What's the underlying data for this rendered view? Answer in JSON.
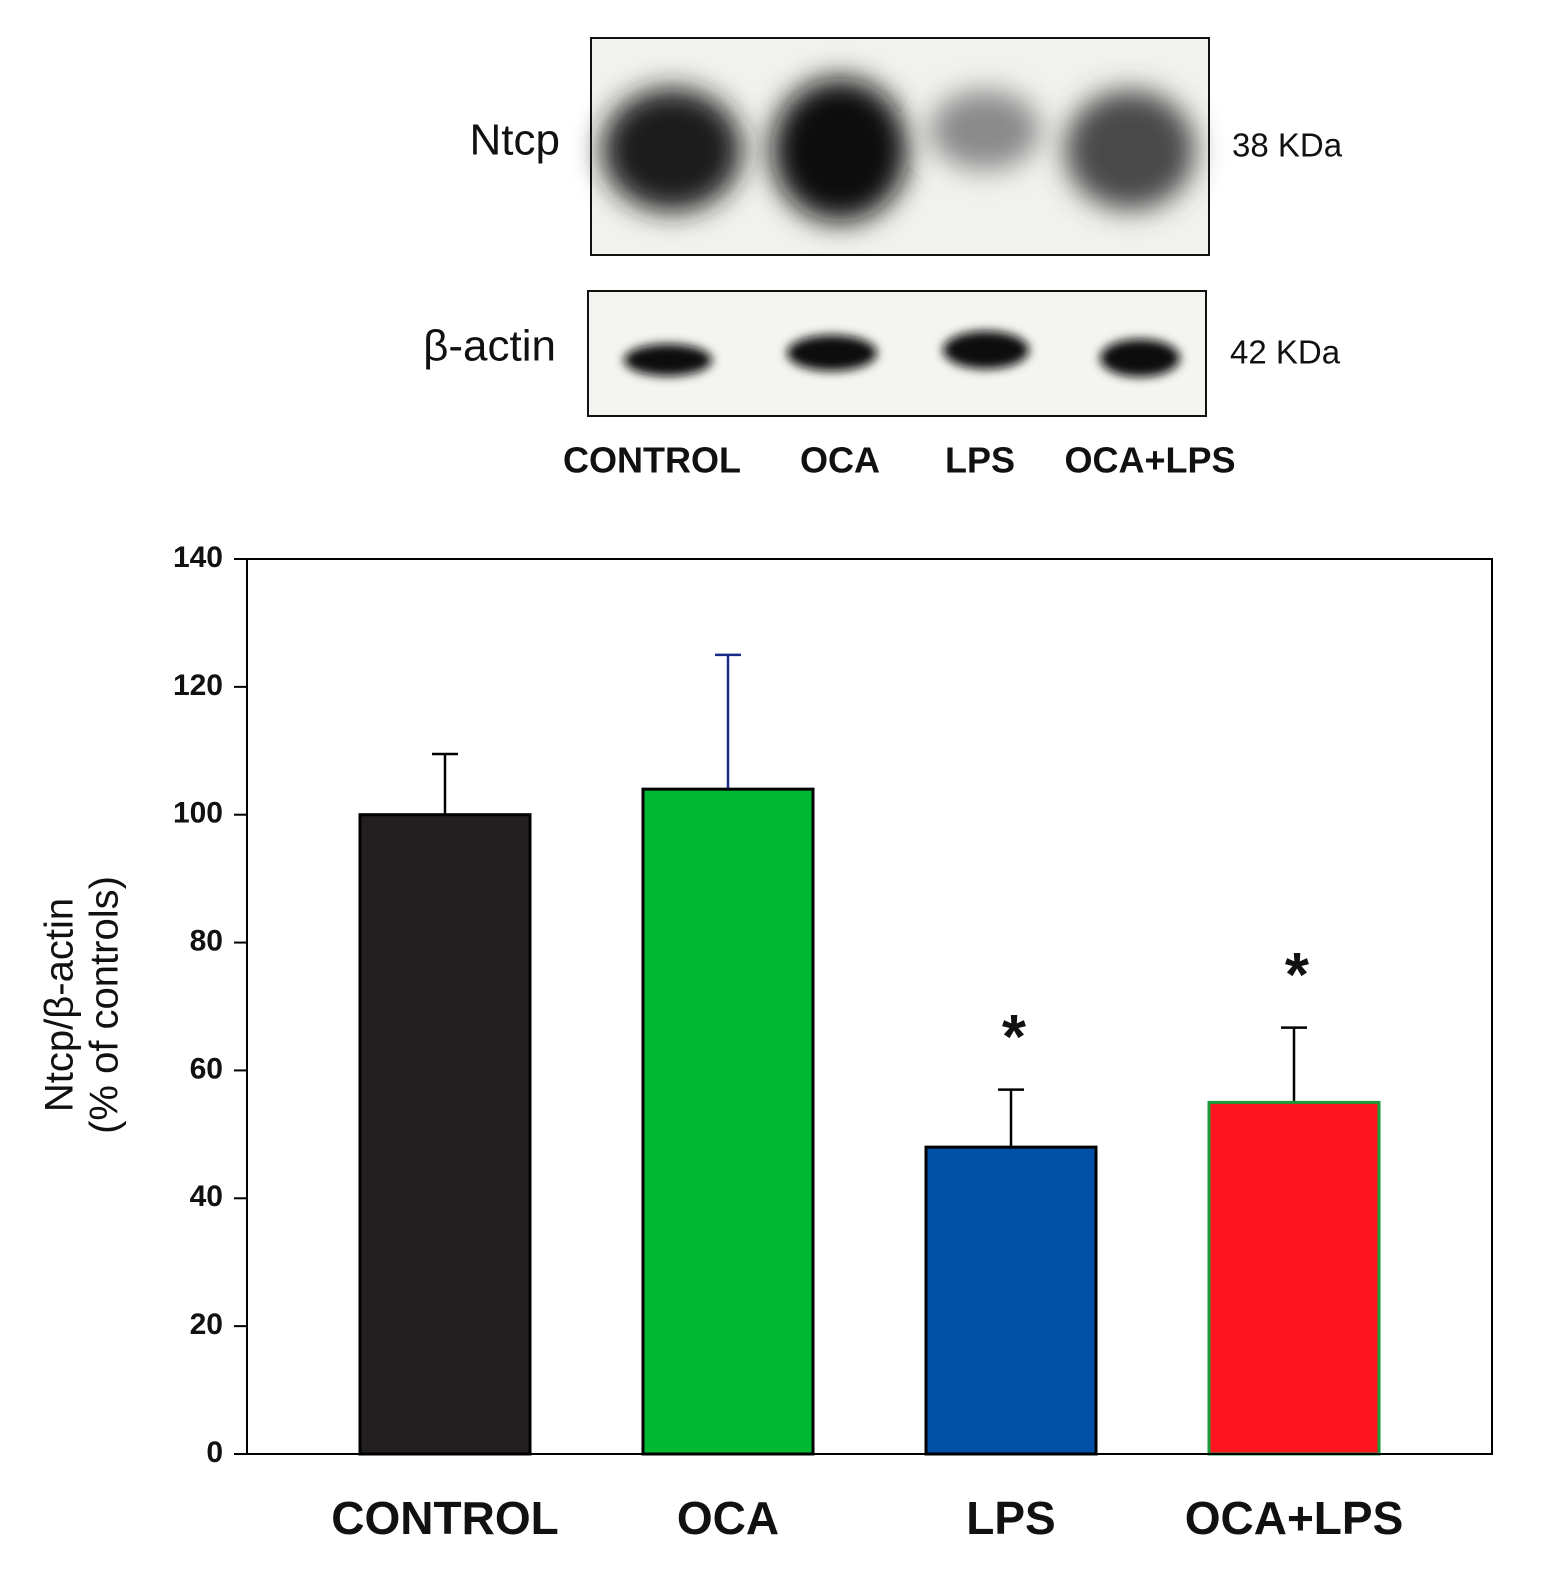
{
  "blot": {
    "rows": [
      {
        "label": "Ntcp",
        "size": "38 KDa"
      },
      {
        "label": "β-actin",
        "size": "42 KDa"
      }
    ],
    "lanes": [
      "CONTROL",
      "OCA",
      "LPS",
      "OCA+LPS"
    ]
  },
  "chart_data": {
    "type": "bar",
    "categories": [
      "CONTROL",
      "OCA",
      "LPS",
      "OCA+LPS"
    ],
    "values": [
      100,
      104,
      48,
      55
    ],
    "errors": [
      9.5,
      21,
      9,
      11.7
    ],
    "colors": [
      "#231f20",
      "#00b832",
      "#0050a8",
      "#ff1420"
    ],
    "edge_colors": [
      "#000000",
      "#000000",
      "#000000",
      "#1a9a3a"
    ],
    "error_colors": [
      "#000000",
      "#1a2a8c",
      "#000000",
      "#000000"
    ],
    "significance": [
      null,
      null,
      "*",
      "*"
    ],
    "ylabel": [
      "Ntcp/β-actin",
      "(% of controls)"
    ],
    "ylim": [
      0,
      140
    ],
    "yticks": [
      0,
      20,
      40,
      60,
      80,
      100,
      120,
      140
    ]
  }
}
